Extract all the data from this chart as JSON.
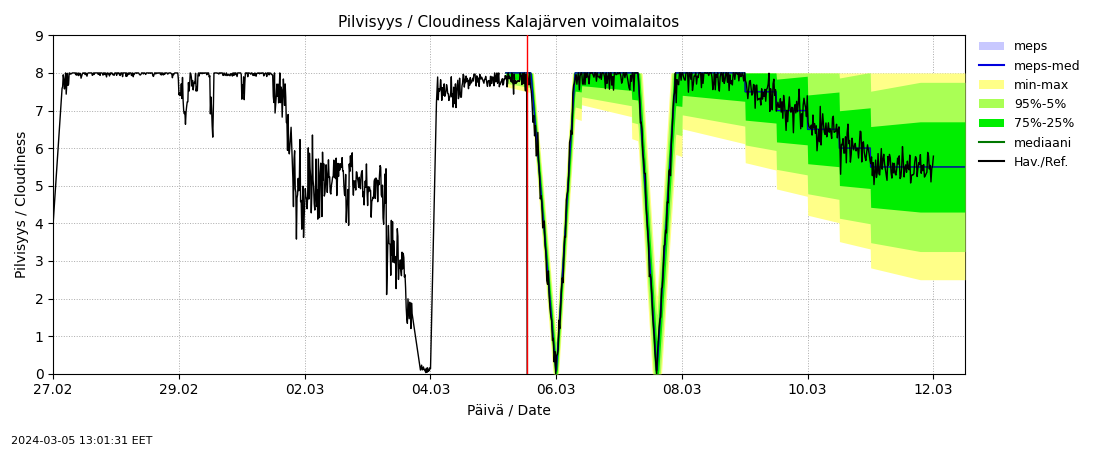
{
  "title": "Pilvisyys / Cloudiness Kalajärven voimalaitos",
  "xlabel": "Päivä / Date",
  "ylabel": "Pilvisyys / Cloudiness",
  "timestamp": "2024-03-05 13:01:31 EET",
  "ylim": [
    0,
    9
  ],
  "yticks": [
    0,
    1,
    2,
    3,
    4,
    5,
    6,
    7,
    8,
    9
  ],
  "xtick_labels": [
    "27.02",
    "29.02",
    "02.03",
    "04.03",
    "06.03",
    "08.03",
    "10.03",
    "12.03"
  ],
  "xtick_pos": [
    0,
    2,
    4,
    6,
    8,
    10,
    12,
    14
  ],
  "xlim": [
    0,
    14.5
  ],
  "colors": {
    "meps_fill": "#c8c8ff",
    "meps_med": "#0000dd",
    "min_max": "#ffff88",
    "pct95_5": "#aaff55",
    "pct75_25": "#00ee00",
    "mediaani": "#007700",
    "hav_ref": "#000000",
    "vline": "#ff0000",
    "grid": "#aaaaaa",
    "bg": "#ffffff"
  },
  "vline_x": 7.54,
  "obs_end_x": 7.54
}
